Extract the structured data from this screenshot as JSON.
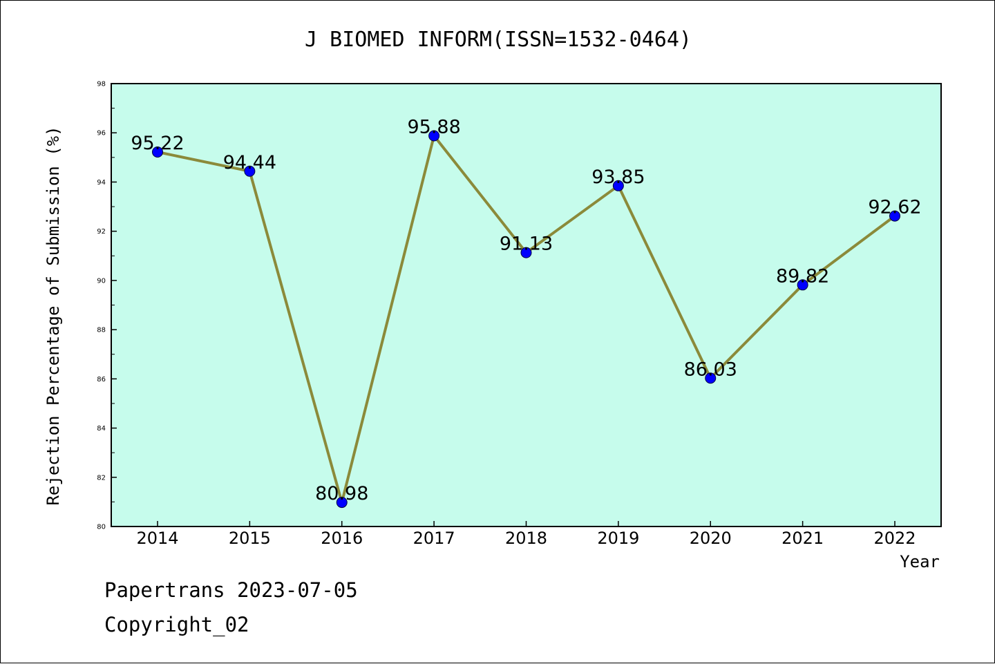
{
  "chart_data": {
    "type": "line",
    "title": "J BIOMED INFORM(ISSN=1532-0464)",
    "xlabel": "Year",
    "ylabel": "Rejection Percentage of Submission (%)",
    "categories": [
      "2014",
      "2015",
      "2016",
      "2017",
      "2018",
      "2019",
      "2020",
      "2021",
      "2022"
    ],
    "series": [
      {
        "values": [
          95.22,
          94.44,
          80.98,
          95.88,
          91.13,
          93.85,
          86.03,
          89.82,
          92.62
        ],
        "data_labels": [
          "95.22",
          "94.44",
          "80.98",
          "95.88",
          "91.13",
          "93.85",
          "86.03",
          "89.82",
          "92.62"
        ]
      }
    ],
    "ylim": [
      80,
      98
    ],
    "yticks": [
      80,
      82,
      84,
      86,
      88,
      90,
      92,
      94,
      96,
      98
    ],
    "grid": false,
    "legend": "none",
    "colors": {
      "plot_background": "#c6fcec",
      "line": "#8b8a3a",
      "marker": "#0000ff"
    }
  },
  "footer": {
    "line1": "Papertrans 2023-07-05",
    "line2": "Copyright_02"
  }
}
